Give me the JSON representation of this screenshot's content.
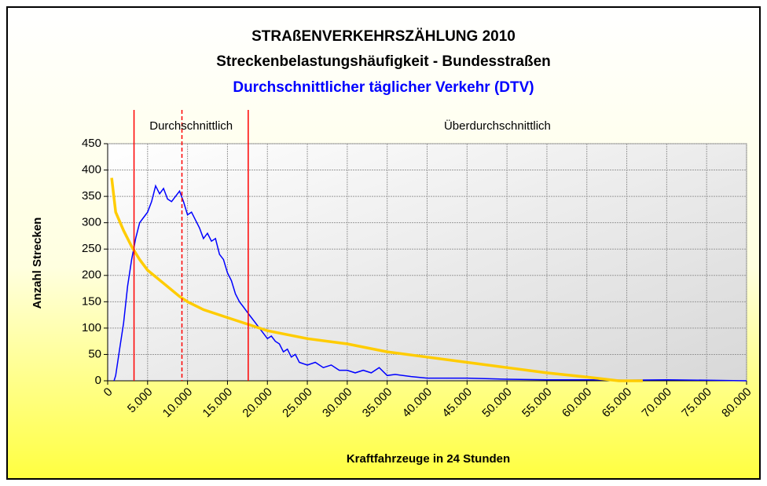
{
  "chart_data": {
    "type": "line",
    "title": "STRAßENVERKEHRSZÄHLUNG 2010",
    "subtitle": "Streckenbelastungshäufigkeit - Bundesstraßen",
    "subtitle2": "Durchschnittlicher täglicher Verkehr (DTV)",
    "subtitle2_color": "#0000ff",
    "x_label": "Kraftfahrzeuge in 24 Stunden",
    "y_label": "Anzahl Strecken",
    "annotations": [
      "Durchschnittlich",
      "Überdurchschnittlich"
    ],
    "reference_lines": [
      {
        "value": 3300,
        "style": "solid",
        "color": "#ff0000"
      },
      {
        "value": 9300,
        "style": "dashed",
        "color": "#ff0000"
      },
      {
        "value": 17600,
        "style": "solid",
        "color": "#ff0000"
      }
    ],
    "xlim": [
      0,
      80000
    ],
    "xticks": [
      0,
      {
        "value": 5000,
        "label": "5.000"
      },
      {
        "value": 10000,
        "label": "10.000"
      },
      {
        "value": 15000,
        "label": "15.000"
      },
      {
        "value": 20000,
        "label": "20.000"
      },
      {
        "value": 25000,
        "label": "25.000"
      },
      {
        "value": 30000,
        "label": "30.000"
      },
      {
        "value": 35000,
        "label": "35.000"
      },
      {
        "value": 40000,
        "label": "40.000"
      },
      {
        "value": 45000,
        "label": "45.000"
      },
      {
        "value": 50000,
        "label": "50.000"
      },
      {
        "value": 55000,
        "label": "55.000"
      },
      {
        "value": 60000,
        "label": "60.000"
      },
      {
        "value": 65000,
        "label": "65.000"
      },
      {
        "value": 70000,
        "label": "70.000"
      },
      {
        "value": 75000,
        "label": "75.000"
      },
      {
        "value": 80000,
        "label": "80.000"
      }
    ],
    "ylim": [
      0,
      450
    ],
    "yticks": [
      0,
      50,
      100,
      150,
      200,
      250,
      300,
      350,
      400,
      450
    ],
    "grid": true,
    "series": [
      {
        "color": "#0000ff",
        "x": [
          800,
          1000,
          1500,
          2000,
          2500,
          3000,
          3500,
          4000,
          4500,
          5000,
          5500,
          6000,
          6500,
          7000,
          7500,
          8000,
          8500,
          9000,
          9500,
          10000,
          10500,
          11000,
          11500,
          12000,
          12500,
          13000,
          13500,
          14000,
          14500,
          15000,
          15500,
          16000,
          16500,
          17000,
          17500,
          18000,
          18500,
          19000,
          19500,
          20000,
          20500,
          21000,
          21500,
          22000,
          22500,
          23000,
          23500,
          24000,
          25000,
          26000,
          27000,
          28000,
          29000,
          30000,
          31000,
          32000,
          33000,
          34000,
          35000,
          36000,
          38000,
          40000,
          45000,
          50000,
          55000,
          60000,
          65000,
          70000,
          75000,
          80000
        ],
        "values": [
          0,
          10,
          60,
          110,
          180,
          230,
          270,
          300,
          310,
          320,
          340,
          370,
          355,
          365,
          345,
          340,
          350,
          360,
          340,
          315,
          320,
          305,
          290,
          270,
          280,
          265,
          270,
          240,
          230,
          205,
          190,
          165,
          150,
          140,
          130,
          120,
          110,
          100,
          90,
          80,
          85,
          75,
          70,
          55,
          60,
          45,
          50,
          35,
          30,
          35,
          25,
          30,
          20,
          20,
          15,
          20,
          15,
          25,
          10,
          12,
          8,
          5,
          5,
          3,
          2,
          2,
          1,
          2,
          1,
          0
        ]
      },
      {
        "color": "#ffcc00",
        "x": [
          500,
          1000,
          2000,
          3000,
          4000,
          5000,
          7000,
          9000,
          10000,
          12000,
          15000,
          18000,
          20000,
          25000,
          30000,
          35000,
          40000,
          45000,
          50000,
          55000,
          60000,
          64000,
          67000
        ],
        "values": [
          385,
          320,
          285,
          255,
          230,
          210,
          185,
          160,
          150,
          135,
          120,
          105,
          95,
          80,
          70,
          55,
          45,
          35,
          25,
          15,
          7,
          0,
          0
        ]
      }
    ]
  }
}
